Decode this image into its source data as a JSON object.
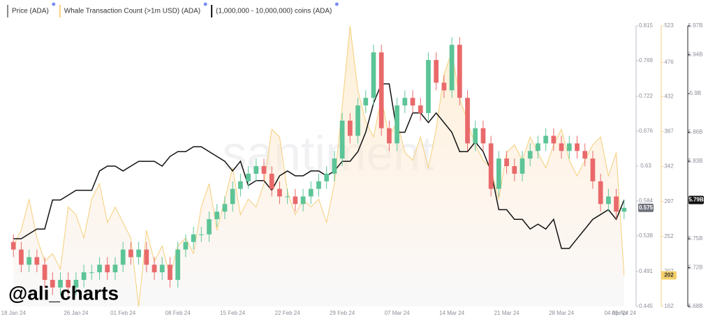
{
  "chart_data": {
    "type": "candlestick",
    "watermark": "santiment",
    "signature": "@ali_charts",
    "x": [
      "18 Jan 24",
      "19 Jan 24",
      "20 Jan 24",
      "21 Jan 24",
      "22 Jan 24",
      "23 Jan 24",
      "24 Jan 24",
      "25 Jan 24",
      "26 Jan 24",
      "27 Jan 24",
      "28 Jan 24",
      "29 Jan 24",
      "30 Jan 24",
      "31 Jan 24",
      "01 Feb 24",
      "02 Feb 24",
      "03 Feb 24",
      "04 Feb 24",
      "05 Feb 24",
      "06 Feb 24",
      "07 Feb 24",
      "08 Feb 24",
      "09 Feb 24",
      "10 Feb 24",
      "11 Feb 24",
      "12 Feb 24",
      "13 Feb 24",
      "14 Feb 24",
      "15 Feb 24",
      "16 Feb 24",
      "17 Feb 24",
      "18 Feb 24",
      "19 Feb 24",
      "20 Feb 24",
      "21 Feb 24",
      "22 Feb 24",
      "23 Feb 24",
      "24 Feb 24",
      "25 Feb 24",
      "26 Feb 24",
      "27 Feb 24",
      "28 Feb 24",
      "29 Feb 24",
      "01 Mar 24",
      "02 Mar 24",
      "03 Mar 24",
      "04 Mar 24",
      "05 Mar 24",
      "06 Mar 24",
      "07 Mar 24",
      "08 Mar 24",
      "09 Mar 24",
      "10 Mar 24",
      "11 Mar 24",
      "12 Mar 24",
      "13 Mar 24",
      "14 Mar 24",
      "15 Mar 24",
      "16 Mar 24",
      "17 Mar 24",
      "18 Mar 24",
      "19 Mar 24",
      "20 Mar 24",
      "21 Mar 24",
      "22 Mar 24",
      "23 Mar 24",
      "24 Mar 24",
      "25 Mar 24",
      "26 Mar 24",
      "27 Mar 24",
      "28 Mar 24",
      "29 Mar 24",
      "30 Mar 24",
      "31 Mar 24",
      "01 Apr 24",
      "02 Apr 24",
      "03 Apr 24",
      "04 Apr 24",
      "05 Apr 24"
    ],
    "xticks": [
      "18 Jan 24",
      "26 Jan 24",
      "01 Feb 24",
      "08 Feb 24",
      "15 Feb 24",
      "22 Feb 24",
      "29 Feb 24",
      "07 Mar 24",
      "14 Mar 24",
      "21 Mar 24",
      "28 Mar 24",
      "04 Apr 24",
      "05 Apr 24"
    ],
    "ylim": [
      0.445,
      0.815
    ],
    "yticks": [
      0.445,
      0.491,
      0.538,
      0.584,
      0.63,
      0.676,
      0.722,
      0.769,
      0.815
    ],
    "y2lim": [
      162,
      523
    ],
    "y2ticks": [
      162,
      207,
      252,
      297,
      342,
      387,
      432,
      476,
      523
    ],
    "y3lim": [
      5.68,
      5.97
    ],
    "y3ticks": [
      {
        "value": 5.68,
        "label": "5.68B"
      },
      {
        "value": 5.72,
        "label": "5.72B"
      },
      {
        "value": 5.75,
        "label": "5.75B"
      },
      {
        "value": 5.79,
        "label": "5.79B"
      },
      {
        "value": 5.83,
        "label": "5.83B"
      },
      {
        "value": 5.86,
        "label": "5.86B"
      },
      {
        "value": 5.9,
        "label": "5.9B"
      },
      {
        "value": 5.94,
        "label": "5.94B"
      },
      {
        "value": 5.97,
        "label": "5.97B"
      }
    ],
    "series": [
      {
        "name": "Whale Transaction Count (>1m USD) (ADA)",
        "type": "area",
        "axis": "y2",
        "color": "#f5cf7a",
        "current_label": "202",
        "values": [
          240,
          260,
          300,
          250,
          220,
          230,
          210,
          290,
          280,
          250,
          300,
          320,
          270,
          290,
          270,
          250,
          162,
          260,
          220,
          240,
          200,
          240,
          250,
          230,
          290,
          320,
          260,
          300,
          340,
          280,
          300,
          290,
          320,
          390,
          380,
          310,
          280,
          300,
          290,
          300,
          270,
          320,
          420,
          523,
          440,
          400,
          380,
          430,
          380,
          400,
          360,
          350,
          380,
          340,
          390,
          460,
          490,
          430,
          400,
          370,
          350,
          340,
          300,
          360,
          370,
          350,
          380,
          360,
          340,
          370,
          390,
          350,
          330,
          350,
          370,
          380,
          330,
          360,
          202
        ]
      },
      {
        "name": "(1,000,000 - 10,000,000) coins (ADA)",
        "type": "line",
        "axis": "y3",
        "color": "#111111",
        "current_label": "5.79B",
        "values": [
          5.75,
          5.75,
          5.755,
          5.76,
          5.76,
          5.79,
          5.79,
          5.795,
          5.8,
          5.8,
          5.8,
          5.82,
          5.825,
          5.825,
          5.82,
          5.825,
          5.83,
          5.83,
          5.83,
          5.825,
          5.835,
          5.84,
          5.84,
          5.845,
          5.845,
          5.84,
          5.835,
          5.83,
          5.82,
          5.83,
          5.805,
          5.81,
          5.81,
          5.8,
          5.815,
          5.82,
          5.815,
          5.815,
          5.82,
          5.82,
          5.815,
          5.82,
          5.83,
          5.83,
          5.84,
          5.86,
          5.89,
          5.91,
          5.91,
          5.86,
          5.86,
          5.88,
          5.88,
          5.87,
          5.88,
          5.87,
          5.86,
          5.84,
          5.84,
          5.85,
          5.84,
          5.82,
          5.78,
          5.78,
          5.77,
          5.77,
          5.76,
          5.765,
          5.76,
          5.77,
          5.74,
          5.74,
          5.75,
          5.76,
          5.77,
          5.775,
          5.78,
          5.77,
          5.79
        ]
      },
      {
        "name": "Price (ADA)",
        "type": "candlestick",
        "axis": "y",
        "color": "#8a8a8a",
        "up_color": "#5cc497",
        "down_color": "#e9696b",
        "current_label": "0.575",
        "open": [
          0.53,
          0.52,
          0.5,
          0.51,
          0.5,
          0.48,
          0.47,
          0.48,
          0.47,
          0.48,
          0.49,
          0.49,
          0.5,
          0.49,
          0.5,
          0.52,
          0.51,
          0.52,
          0.5,
          0.49,
          0.5,
          0.48,
          0.52,
          0.53,
          0.54,
          0.54,
          0.56,
          0.57,
          0.58,
          0.6,
          0.61,
          0.62,
          0.63,
          0.62,
          0.6,
          0.59,
          0.59,
          0.58,
          0.59,
          0.6,
          0.61,
          0.62,
          0.64,
          0.69,
          0.67,
          0.71,
          0.72,
          0.78,
          0.68,
          0.66,
          0.71,
          0.72,
          0.71,
          0.7,
          0.77,
          0.74,
          0.73,
          0.79,
          0.72,
          0.66,
          0.68,
          0.66,
          0.6,
          0.64,
          0.63,
          0.62,
          0.64,
          0.65,
          0.66,
          0.67,
          0.66,
          0.65,
          0.66,
          0.65,
          0.64,
          0.61,
          0.58,
          0.59,
          0.57
        ],
        "high": [
          0.54,
          0.53,
          0.52,
          0.52,
          0.51,
          0.49,
          0.49,
          0.49,
          0.49,
          0.5,
          0.5,
          0.51,
          0.51,
          0.51,
          0.53,
          0.53,
          0.53,
          0.53,
          0.51,
          0.51,
          0.51,
          0.53,
          0.54,
          0.55,
          0.55,
          0.57,
          0.58,
          0.59,
          0.61,
          0.62,
          0.63,
          0.64,
          0.64,
          0.63,
          0.61,
          0.6,
          0.6,
          0.6,
          0.61,
          0.62,
          0.63,
          0.65,
          0.7,
          0.7,
          0.72,
          0.73,
          0.79,
          0.79,
          0.69,
          0.72,
          0.73,
          0.73,
          0.72,
          0.78,
          0.78,
          0.75,
          0.8,
          0.8,
          0.73,
          0.69,
          0.69,
          0.67,
          0.65,
          0.65,
          0.64,
          0.65,
          0.66,
          0.67,
          0.68,
          0.68,
          0.67,
          0.67,
          0.67,
          0.66,
          0.65,
          0.62,
          0.6,
          0.6,
          0.585
        ],
        "low": [
          0.51,
          0.49,
          0.49,
          0.49,
          0.47,
          0.46,
          0.46,
          0.46,
          0.46,
          0.47,
          0.48,
          0.48,
          0.48,
          0.48,
          0.49,
          0.5,
          0.5,
          0.49,
          0.48,
          0.48,
          0.47,
          0.47,
          0.51,
          0.52,
          0.53,
          0.53,
          0.55,
          0.56,
          0.57,
          0.59,
          0.6,
          0.61,
          0.61,
          0.59,
          0.58,
          0.58,
          0.57,
          0.57,
          0.58,
          0.59,
          0.6,
          0.61,
          0.63,
          0.66,
          0.66,
          0.7,
          0.71,
          0.67,
          0.65,
          0.65,
          0.7,
          0.7,
          0.69,
          0.69,
          0.73,
          0.72,
          0.72,
          0.71,
          0.65,
          0.65,
          0.65,
          0.59,
          0.59,
          0.62,
          0.61,
          0.61,
          0.63,
          0.64,
          0.65,
          0.65,
          0.64,
          0.64,
          0.64,
          0.63,
          0.6,
          0.57,
          0.57,
          0.56,
          0.56
        ],
        "close": [
          0.52,
          0.5,
          0.51,
          0.5,
          0.48,
          0.47,
          0.48,
          0.47,
          0.48,
          0.49,
          0.49,
          0.5,
          0.49,
          0.5,
          0.52,
          0.51,
          0.52,
          0.5,
          0.49,
          0.5,
          0.48,
          0.52,
          0.53,
          0.54,
          0.54,
          0.56,
          0.57,
          0.58,
          0.6,
          0.61,
          0.62,
          0.63,
          0.62,
          0.6,
          0.59,
          0.59,
          0.58,
          0.59,
          0.6,
          0.61,
          0.62,
          0.64,
          0.69,
          0.67,
          0.71,
          0.72,
          0.78,
          0.68,
          0.66,
          0.71,
          0.72,
          0.71,
          0.7,
          0.77,
          0.74,
          0.73,
          0.79,
          0.72,
          0.66,
          0.68,
          0.66,
          0.6,
          0.64,
          0.63,
          0.62,
          0.64,
          0.65,
          0.66,
          0.67,
          0.66,
          0.65,
          0.66,
          0.65,
          0.64,
          0.61,
          0.58,
          0.59,
          0.57,
          0.575
        ]
      }
    ]
  }
}
